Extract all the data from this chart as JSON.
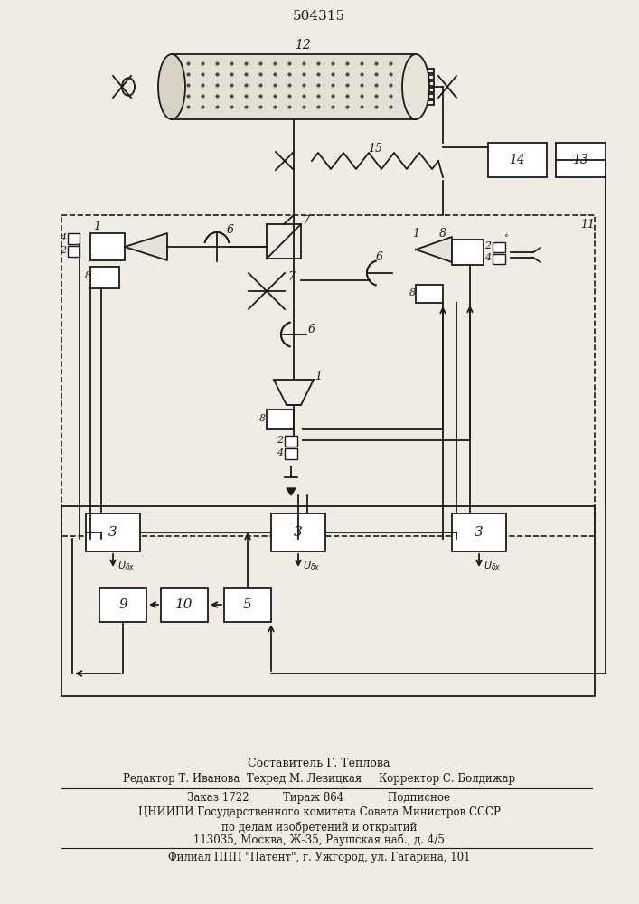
{
  "title": "504315",
  "bg_color": "#f0ece3",
  "line_color": "#1a1a1a",
  "fig_width": 7.07,
  "fig_height": 10.0,
  "footer_lines": [
    "Составитель Г. Теплова",
    "Редактор Т. Иванова  Техред М. Левицкая     Корректор С. Болдижар",
    "Заказ 1722          Тираж 864             Подписное",
    "ЦНИИПИ Государственного комитета Совета Министров СССР",
    "по делам изобретений и открытий",
    "113035, Москва, Ж-35, Раушская наб., д. 4/5",
    "Филиал ППП \"Патент\", г. Ужгород, ул. Гагарина, 101"
  ]
}
